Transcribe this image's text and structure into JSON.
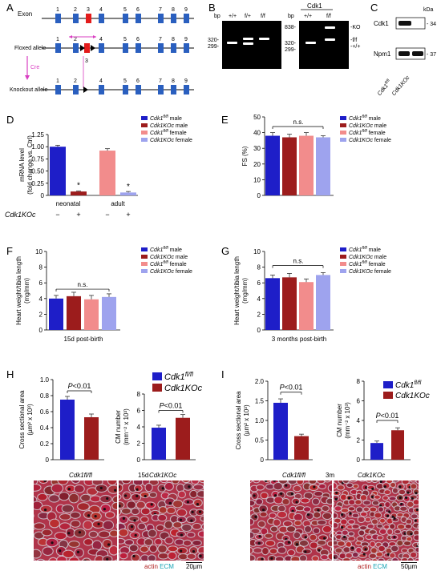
{
  "panels": {
    "A": {
      "label": "A",
      "exon_word": "Exon",
      "exons": [
        "1",
        "2",
        "3",
        "4",
        "5",
        "6",
        "7",
        "8",
        "9"
      ],
      "floxed_label": "Floxed allele",
      "cre_label": "Cre",
      "knockout_label": "Knockout allele",
      "floxed_numbers": [
        "1",
        "2",
        "3",
        "4",
        "5",
        "6",
        "7",
        "8",
        "9"
      ],
      "ko_numbers": [
        "1",
        "2",
        "4",
        "5",
        "6",
        "7",
        "8",
        "9"
      ],
      "highlight_exon": "3"
    },
    "B": {
      "label": "B",
      "gene": "Cdk1",
      "bp": "bp",
      "gel1_lanes": [
        "+/+",
        "f/+",
        "f/f"
      ],
      "gel1_markers": [
        "320-",
        "299-"
      ],
      "gel2_lanes": [
        "+/+",
        "f/f"
      ],
      "gel2_markers": [
        "838-",
        "320-",
        "299-"
      ],
      "gel2_bands": [
        "-KO",
        "-f/f",
        "-+/+"
      ]
    },
    "C": {
      "label": "C",
      "kda": "kDa",
      "rows": [
        {
          "name": "Cdk1",
          "size": "34"
        },
        {
          "name": "Npm1",
          "size": "37"
        }
      ],
      "lanes": [
        "Cdk1fl/fl",
        "Cdk1KOc"
      ]
    },
    "D": {
      "label": "D"
    },
    "E": {
      "label": "E"
    },
    "F": {
      "label": "F"
    },
    "G": {
      "label": "G"
    },
    "H": {
      "label": "H"
    },
    "I": {
      "label": "I"
    }
  },
  "legend": {
    "items": [
      {
        "pre": "Cdk1",
        "sup": "fl/fl",
        "post": " male",
        "color": "#1e1ec8"
      },
      {
        "pre": "Cdk1KOc",
        "sup": "",
        "post": " male",
        "color": "#9c1c1c"
      },
      {
        "pre": "Cdk1",
        "sup": "fl/fl",
        "post": " female",
        "color": "#f28c8c"
      },
      {
        "pre": "Cdk1KOc",
        "sup": "",
        "post": " female",
        "color": "#9ea3ee"
      }
    ]
  },
  "colors": {
    "blue": "#1e1ec8",
    "darkred": "#9c1c1c",
    "pink": "#f28c8c",
    "lavender": "#9ea3ee",
    "exon": "#2a5fbf",
    "exon3": "#e31b1b"
  },
  "chart_data": [
    {
      "id": "D",
      "type": "bar",
      "ylabel": "mRNA level (fold change vs. Ctrl)",
      "ylim": [
        0,
        1.25
      ],
      "yticks": [
        "0",
        "0.25",
        "0.50",
        "0.75",
        "1.00",
        "1.25"
      ],
      "groups": [
        "neonatal",
        "adult"
      ],
      "genotype_row_label": "Cdk1KOc",
      "genotype_marks": [
        "−",
        "+",
        "−",
        "+"
      ],
      "values": [
        1.0,
        0.08,
        0.92,
        0.06
      ],
      "errors": [
        0.03,
        0.01,
        0.04,
        0.02
      ],
      "colors": [
        "#1e1ec8",
        "#9c1c1c",
        "#f28c8c",
        "#9ea3ee"
      ],
      "star": "*"
    },
    {
      "id": "E",
      "type": "bar",
      "ylabel": "FS (%)",
      "ylim": [
        0,
        50
      ],
      "yticks": [
        "0",
        "10",
        "20",
        "30",
        "40",
        "50"
      ],
      "values": [
        38,
        37,
        38,
        37
      ],
      "errors": [
        2,
        2,
        2,
        1
      ],
      "colors": [
        "#1e1ec8",
        "#9c1c1c",
        "#f28c8c",
        "#9ea3ee"
      ],
      "sig": "n.s."
    },
    {
      "id": "F",
      "type": "bar",
      "ylabel": "Heart weight/tibia length (mg/mm)",
      "xlabel": "15d post-birth",
      "ylim": [
        0,
        10
      ],
      "yticks": [
        "0",
        "2",
        "4",
        "6",
        "8",
        "10"
      ],
      "values": [
        4.0,
        4.3,
        3.9,
        4.2
      ],
      "errors": [
        0.4,
        0.5,
        0.5,
        0.4
      ],
      "colors": [
        "#1e1ec8",
        "#9c1c1c",
        "#f28c8c",
        "#9ea3ee"
      ],
      "sig": "n.s."
    },
    {
      "id": "G",
      "type": "bar",
      "ylabel": "Heart weight/tibia length (mg/mm)",
      "xlabel": "3 months post-birth",
      "ylim": [
        0,
        10
      ],
      "yticks": [
        "0",
        "2",
        "4",
        "6",
        "8",
        "10"
      ],
      "values": [
        6.6,
        6.7,
        6.1,
        7.0
      ],
      "errors": [
        0.4,
        0.5,
        0.4,
        0.3
      ],
      "colors": [
        "#1e1ec8",
        "#9c1c1c",
        "#f28c8c",
        "#9ea3ee"
      ],
      "sig": "n.s."
    },
    {
      "id": "H1",
      "type": "bar",
      "ylabel": "Cross sectional area (µm² x 10³)",
      "ylim": [
        0,
        1.0
      ],
      "yticks": [
        "0",
        "0.2",
        "0.4",
        "0.6",
        "0.8",
        "1.0"
      ],
      "values": [
        0.75,
        0.53
      ],
      "errors": [
        0.04,
        0.04
      ],
      "colors": [
        "#1e1ec8",
        "#9c1c1c"
      ],
      "sig": "P<0.01"
    },
    {
      "id": "H2",
      "type": "bar",
      "ylabel": "CM number (mm⁻² x 10³)",
      "ylim": [
        0,
        8
      ],
      "yticks": [
        "0",
        "2",
        "4",
        "6",
        "8"
      ],
      "values": [
        3.9,
        5.1
      ],
      "errors": [
        0.3,
        0.4
      ],
      "colors": [
        "#1e1ec8",
        "#9c1c1c"
      ],
      "sig": "P<0.01",
      "legend": [
        {
          "pre": "Cdk1",
          "sup": "fl/fl"
        },
        {
          "pre": "Cdk1KOc",
          "sup": ""
        }
      ]
    },
    {
      "id": "I1",
      "type": "bar",
      "ylabel": "Cross sectional area (µm² x 10³)",
      "ylim": [
        0,
        2.0
      ],
      "yticks": [
        "0",
        "0.5",
        "1.0",
        "1.5",
        "2.0"
      ],
      "values": [
        1.45,
        0.6
      ],
      "errors": [
        0.1,
        0.05
      ],
      "colors": [
        "#1e1ec8",
        "#9c1c1c"
      ],
      "sig": "P<0.01"
    },
    {
      "id": "I2",
      "type": "bar",
      "ylabel": "CM number (mm⁻² x 10³)",
      "ylim": [
        0,
        8
      ],
      "yticks": [
        "0",
        "2",
        "4",
        "6",
        "8"
      ],
      "values": [
        1.7,
        3.0
      ],
      "errors": [
        0.2,
        0.25
      ],
      "colors": [
        "#1e1ec8",
        "#9c1c1c"
      ],
      "sig": "P<0.01",
      "legend": [
        {
          "pre": "Cdk1",
          "sup": "fl/fl"
        },
        {
          "pre": "Cdk1KOc",
          "sup": ""
        }
      ]
    }
  ],
  "micrographs": {
    "H": {
      "left": "Cdk1fl/fl",
      "mid": "15d",
      "right": "Cdk1KOc",
      "actin": "actin",
      "ecm": "ECM",
      "scale": "20µm"
    },
    "I": {
      "left": "Cdk1fl/fl",
      "mid": "3m",
      "right": "Cdk1KOc",
      "actin": "actin",
      "ecm": "ECM",
      "scale": "50µm"
    }
  }
}
